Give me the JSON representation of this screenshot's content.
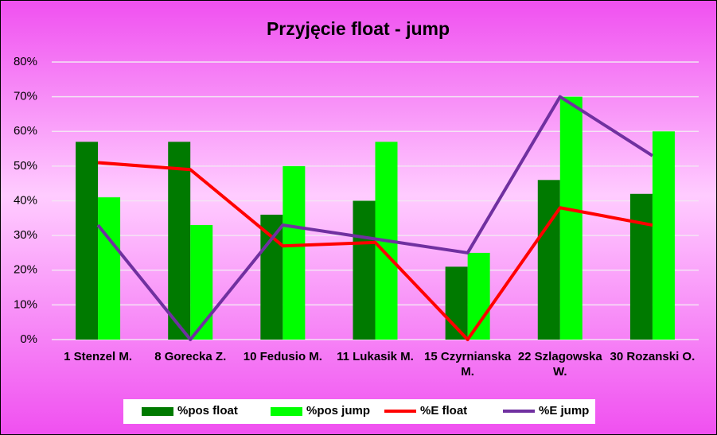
{
  "chart_data": {
    "type": "bar",
    "title": "Przyjęcie float - jump",
    "categories": [
      "1 Stenzel M.",
      "8 Gorecka Z.",
      "10 Fedusio M.",
      "11 Lukasik M.",
      "15 Czyrnianska M.",
      "22 Szlagowska W.",
      "30 Rozanski O."
    ],
    "series": [
      {
        "name": "%pos float",
        "type": "bar",
        "color": "#007a00",
        "values": [
          57,
          57,
          36,
          40,
          21,
          46,
          42
        ]
      },
      {
        "name": "%pos jump",
        "type": "bar",
        "color": "#00ff00",
        "values": [
          41,
          33,
          50,
          57,
          25,
          70,
          60
        ]
      },
      {
        "name": "%E float",
        "type": "line",
        "color": "#ff0000",
        "values": [
          51,
          49,
          27,
          28,
          0,
          38,
          33
        ]
      },
      {
        "name": "%E jump",
        "type": "line",
        "color": "#7030a0",
        "values": [
          33,
          0,
          33,
          29,
          25,
          70,
          53
        ]
      }
    ],
    "ylim": [
      0,
      80
    ],
    "yticks": [
      {
        "value": 0,
        "label": "0%"
      },
      {
        "value": 10,
        "label": "10%"
      },
      {
        "value": 20,
        "label": "20%"
      },
      {
        "value": 30,
        "label": "30%"
      },
      {
        "value": 40,
        "label": "40%"
      },
      {
        "value": 50,
        "label": "50%"
      },
      {
        "value": 60,
        "label": "60%"
      },
      {
        "value": 70,
        "label": "70%"
      },
      {
        "value": 80,
        "label": "80%"
      }
    ],
    "grid": true,
    "legend": "bottom"
  }
}
